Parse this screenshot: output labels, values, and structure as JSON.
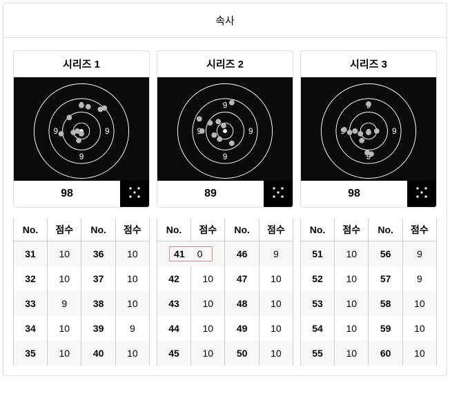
{
  "title": "속사",
  "columns": {
    "no": "No.",
    "score": "점수"
  },
  "target_style": {
    "bg": "#0a0a0a",
    "ring_stroke": "#ffffff",
    "ring_stroke_width": 1,
    "text_fill": "#ffffff",
    "ring_label": "9",
    "label_fontsize": 12,
    "rings": [
      70,
      48,
      28,
      12
    ],
    "shot_fill": "#b8b8b8",
    "shot_radius": 4
  },
  "expand_icon_color": "#ffffff",
  "highlight_border": "#e08080",
  "series": [
    {
      "label": "시리즈 1",
      "total": 98,
      "shots": [
        {
          "x": 82,
          "y": 58
        },
        {
          "x": 100,
          "y": 40
        },
        {
          "x": 110,
          "y": 42
        },
        {
          "x": 128,
          "y": 46
        },
        {
          "x": 134,
          "y": 44
        },
        {
          "x": 70,
          "y": 82
        },
        {
          "x": 88,
          "y": 80
        },
        {
          "x": 94,
          "y": 78
        },
        {
          "x": 100,
          "y": 82
        },
        {
          "x": 96,
          "y": 92
        }
      ],
      "rows": [
        {
          "n1": 31,
          "s1": 10,
          "n2": 36,
          "s2": 10,
          "hl": false
        },
        {
          "n1": 32,
          "s1": 10,
          "n2": 37,
          "s2": 10,
          "hl": false
        },
        {
          "n1": 33,
          "s1": 9,
          "n2": 38,
          "s2": 10,
          "hl": false
        },
        {
          "n1": 34,
          "s1": 10,
          "n2": 39,
          "s2": 9,
          "hl": false
        },
        {
          "n1": 35,
          "s1": 10,
          "n2": 40,
          "s2": 10,
          "hl": false
        }
      ]
    },
    {
      "label": "시리즈 2",
      "total": 89,
      "shots": [
        {
          "x": 110,
          "y": 36
        },
        {
          "x": 62,
          "y": 60
        },
        {
          "x": 78,
          "y": 66
        },
        {
          "x": 90,
          "y": 64
        },
        {
          "x": 98,
          "y": 70
        },
        {
          "x": 66,
          "y": 78
        },
        {
          "x": 84,
          "y": 84
        },
        {
          "x": 92,
          "y": 90
        },
        {
          "x": 110,
          "y": 96
        }
      ],
      "rows": [
        {
          "n1": 41,
          "s1": 0,
          "n2": 46,
          "s2": 9,
          "hl": true
        },
        {
          "n1": 42,
          "s1": 10,
          "n2": 47,
          "s2": 10,
          "hl": false
        },
        {
          "n1": 43,
          "s1": 10,
          "n2": 48,
          "s2": 10,
          "hl": false
        },
        {
          "n1": 44,
          "s1": 10,
          "n2": 49,
          "s2": 10,
          "hl": false
        },
        {
          "n1": 45,
          "s1": 10,
          "n2": 50,
          "s2": 10,
          "hl": false
        }
      ]
    },
    {
      "label": "시리즈 3",
      "total": 98,
      "shots": [
        {
          "x": 100,
          "y": 38
        },
        {
          "x": 64,
          "y": 76
        },
        {
          "x": 72,
          "y": 80
        },
        {
          "x": 80,
          "y": 78
        },
        {
          "x": 88,
          "y": 82
        },
        {
          "x": 100,
          "y": 80
        },
        {
          "x": 112,
          "y": 78
        },
        {
          "x": 90,
          "y": 92
        },
        {
          "x": 98,
          "y": 110
        },
        {
          "x": 104,
          "y": 112
        }
      ],
      "rows": [
        {
          "n1": 51,
          "s1": 10,
          "n2": 56,
          "s2": 9,
          "hl": false
        },
        {
          "n1": 52,
          "s1": 10,
          "n2": 57,
          "s2": 9,
          "hl": false
        },
        {
          "n1": 53,
          "s1": 10,
          "n2": 58,
          "s2": 10,
          "hl": false
        },
        {
          "n1": 54,
          "s1": 10,
          "n2": 59,
          "s2": 10,
          "hl": false
        },
        {
          "n1": 55,
          "s1": 10,
          "n2": 60,
          "s2": 10,
          "hl": false
        }
      ]
    }
  ]
}
